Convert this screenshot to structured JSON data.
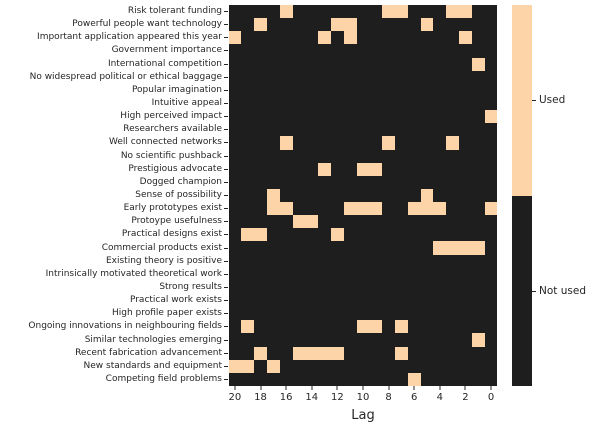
{
  "chart_data": {
    "type": "heatmap",
    "title": "",
    "xlabel": "Lag",
    "ylabel": "",
    "x_tick_labels": [
      "20",
      "18",
      "16",
      "14",
      "12",
      "10",
      "8",
      "6",
      "4",
      "2",
      "0"
    ],
    "lags": [
      20,
      19,
      18,
      17,
      16,
      15,
      14,
      13,
      12,
      11,
      10,
      9,
      8,
      7,
      6,
      5,
      4,
      3,
      2,
      1,
      0
    ],
    "value_encoding": {
      "used": 1,
      "not_used": 0
    },
    "legend": [
      {
        "label": "Used",
        "value": 1,
        "color": "#FCD4A8"
      },
      {
        "label": "Not used",
        "value": 0,
        "color": "#1E1E1E"
      }
    ],
    "legend_position": "right-colorbar",
    "grid": false,
    "rows": [
      {
        "label": "Risk tolerant funding",
        "used_lags": [
          16,
          8,
          7,
          3,
          2
        ]
      },
      {
        "label": "Powerful people want technology",
        "used_lags": [
          18,
          12,
          11,
          5
        ]
      },
      {
        "label": "Important application appeared this year",
        "used_lags": [
          20,
          13,
          11,
          2
        ]
      },
      {
        "label": "Government importance",
        "used_lags": []
      },
      {
        "label": "International competition",
        "used_lags": [
          1
        ]
      },
      {
        "label": "No widespread political or ethical baggage",
        "used_lags": []
      },
      {
        "label": "Popular imagination",
        "used_lags": []
      },
      {
        "label": "Intuitive appeal",
        "used_lags": []
      },
      {
        "label": "High perceived impact",
        "used_lags": [
          0
        ]
      },
      {
        "label": "Researchers available",
        "used_lags": []
      },
      {
        "label": "Well connected networks",
        "used_lags": [
          16,
          8,
          3
        ]
      },
      {
        "label": "No scientific pushback",
        "used_lags": []
      },
      {
        "label": "Prestigious advocate",
        "used_lags": [
          13,
          10,
          9
        ]
      },
      {
        "label": "Dogged champion",
        "used_lags": []
      },
      {
        "label": "Sense of possibility",
        "used_lags": [
          17,
          5
        ]
      },
      {
        "label": "Early prototypes exist",
        "used_lags": [
          17,
          16,
          11,
          10,
          9,
          6,
          5,
          4,
          0
        ]
      },
      {
        "label": "Protoype usefulness",
        "used_lags": [
          15,
          14
        ]
      },
      {
        "label": "Practical designs exist",
        "used_lags": [
          19,
          18,
          12
        ]
      },
      {
        "label": "Commercial products exist",
        "used_lags": [
          4,
          3,
          2,
          1
        ]
      },
      {
        "label": "Existing theory is positive",
        "used_lags": []
      },
      {
        "label": "Intrinsically motivated theoretical work",
        "used_lags": []
      },
      {
        "label": "Strong results",
        "used_lags": []
      },
      {
        "label": "Practical work exists",
        "used_lags": []
      },
      {
        "label": "High profile paper exists",
        "used_lags": []
      },
      {
        "label": "Ongoing innovations in neighbouring fields",
        "used_lags": [
          19,
          10,
          9,
          7
        ]
      },
      {
        "label": "Similar technologies emerging",
        "used_lags": [
          1
        ]
      },
      {
        "label": "Recent fabrication advancement",
        "used_lags": [
          18,
          15,
          14,
          13,
          12,
          7
        ]
      },
      {
        "label": "New standards and equipment",
        "used_lags": [
          20,
          19,
          17
        ]
      },
      {
        "label": "Competing field problems",
        "used_lags": [
          6
        ]
      }
    ]
  },
  "colors": {
    "used": "#FCD4A8",
    "not_used": "#1E1E1E",
    "text": "#262626",
    "background": "#FFFFFF"
  }
}
